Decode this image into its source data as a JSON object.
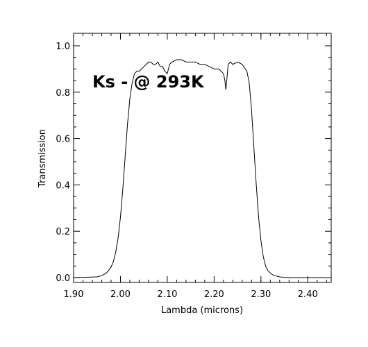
{
  "chart_data": {
    "type": "line",
    "title": "",
    "xlabel": "Lambda (microns)",
    "ylabel": "Transmission",
    "xlim": [
      1.9,
      2.45
    ],
    "ylim": [
      0.0,
      1.05
    ],
    "x_ticks": [
      1.9,
      2.0,
      2.1,
      2.2,
      2.3,
      2.4
    ],
    "x_tick_labels": [
      "1.90",
      "2.00",
      "2.10",
      "2.20",
      "2.30",
      "2.40"
    ],
    "y_ticks": [
      0.0,
      0.2,
      0.4,
      0.6,
      0.8,
      1.0
    ],
    "y_tick_labels": [
      "0.0",
      "0.2",
      "0.4",
      "0.6",
      "0.8",
      "1.0"
    ],
    "grid": false,
    "annotation": "Ks - @ 293K",
    "line_color": "#000000",
    "series": [
      {
        "x": [
          1.9,
          1.95,
          1.96,
          1.97,
          1.98,
          1.985,
          1.99,
          1.995,
          2.0,
          2.005,
          2.01,
          2.015,
          2.02,
          2.025,
          2.03,
          2.035,
          2.04,
          2.045,
          2.05,
          2.055,
          2.06,
          2.065,
          2.07,
          2.075,
          2.08,
          2.085,
          2.09,
          2.095,
          2.1,
          2.105,
          2.11,
          2.12,
          2.13,
          2.14,
          2.15,
          2.16,
          2.17,
          2.18,
          2.19,
          2.2,
          2.21,
          2.215,
          2.22,
          2.223,
          2.225,
          2.227,
          2.23,
          2.235,
          2.24,
          2.25,
          2.26,
          2.27,
          2.275,
          2.28,
          2.285,
          2.29,
          2.295,
          2.3,
          2.305,
          2.31,
          2.315,
          2.32,
          2.325,
          2.33,
          2.34,
          2.35,
          2.36,
          2.45
        ],
        "y": [
          0.0,
          0.003,
          0.008,
          0.02,
          0.045,
          0.07,
          0.11,
          0.17,
          0.26,
          0.38,
          0.52,
          0.66,
          0.77,
          0.84,
          0.88,
          0.89,
          0.89,
          0.9,
          0.91,
          0.92,
          0.93,
          0.93,
          0.92,
          0.92,
          0.93,
          0.91,
          0.91,
          0.89,
          0.88,
          0.92,
          0.93,
          0.94,
          0.94,
          0.93,
          0.93,
          0.93,
          0.92,
          0.92,
          0.91,
          0.9,
          0.9,
          0.89,
          0.88,
          0.85,
          0.81,
          0.85,
          0.92,
          0.93,
          0.92,
          0.93,
          0.92,
          0.89,
          0.84,
          0.72,
          0.56,
          0.4,
          0.26,
          0.16,
          0.09,
          0.05,
          0.03,
          0.02,
          0.012,
          0.008,
          0.003,
          0.001,
          0.0,
          0.0
        ]
      }
    ]
  }
}
